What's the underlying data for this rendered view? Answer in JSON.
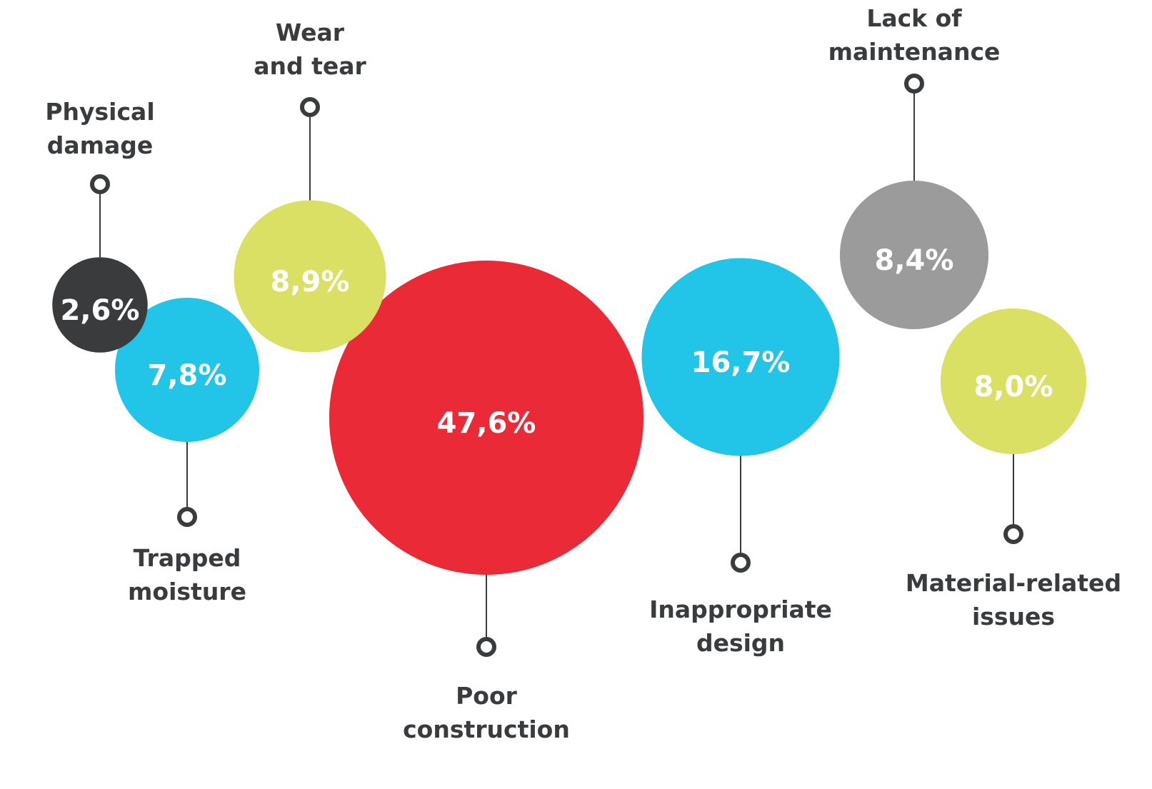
{
  "chart_data": {
    "type": "bubble",
    "categories": [
      "Physical\ndamage",
      "Trapped\nmoisture",
      "Wear\nand tear",
      "Poor\nconstruction",
      "Inappropriate\ndesign",
      "Lack of\nmaintenance",
      "Material-related\nissues"
    ],
    "values": [
      2.6,
      7.8,
      8.9,
      47.6,
      16.7,
      8.4,
      8.0
    ],
    "value_labels": [
      "2,6%",
      "7,8%",
      "8,9%",
      "47,6%",
      "16,7%",
      "8,4%",
      "8,0%"
    ],
    "colors": [
      "#3a3b3d",
      "#22c4e8",
      "#d9e063",
      "#ea2b37",
      "#22c4e8",
      "#9b9b9b",
      "#d9e063"
    ]
  }
}
